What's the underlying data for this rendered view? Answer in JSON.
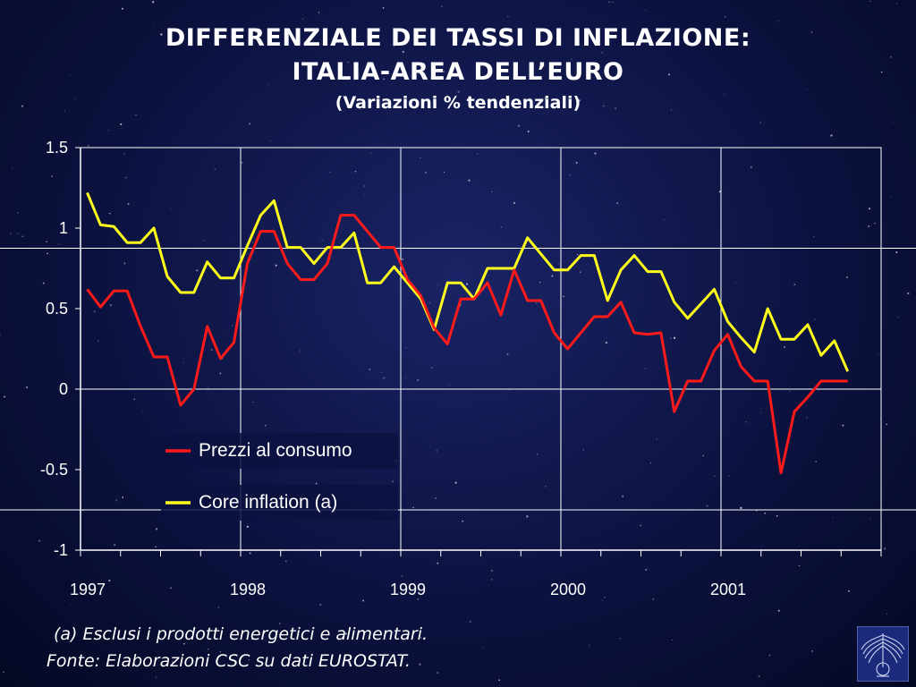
{
  "title_line1": "DIFFERENZIALE DEI TASSI DI INFLAZIONE:",
  "title_line2": "ITALIA-AREA DELL’EURO",
  "subtitle": "(Variazioni % tendenziali)",
  "footnote": "(a) Esclusi i prodotti energetici e alimentari.",
  "source": "Fonte: Elaborazioni CSC su dati EUROSTAT.",
  "logo_icon": "eagle-emblem-icon",
  "chart_data": {
    "type": "line",
    "title": "DIFFERENZIALE DEI TASSI DI INFLAZIONE: ITALIA-AREA DELL’EURO",
    "subtitle": "(Variazioni % tendenziali)",
    "xlabel": "",
    "ylabel": "",
    "ylim": [
      -1,
      1.5
    ],
    "yticks": [
      "-1",
      "-0.5",
      "0",
      "0.5",
      "1",
      "1.5"
    ],
    "xticks": [
      "1997",
      "1998",
      "1999",
      "2000",
      "2001"
    ],
    "x_range_months": [
      0,
      60
    ],
    "grid": "horizontal gridlines at -0.75 and 0.875; vertical gridlines at year boundaries",
    "legend_position": "lower-left inside plot",
    "series": [
      {
        "name": "Prezzi al consumo",
        "color": "#ff1a1a",
        "values": [
          0.62,
          0.51,
          0.61,
          0.61,
          0.39,
          0.2,
          0.2,
          -0.1,
          0.0,
          0.39,
          0.19,
          0.29,
          0.78,
          0.98,
          0.98,
          0.78,
          0.68,
          0.68,
          0.78,
          1.08,
          1.08,
          0.98,
          0.88,
          0.88,
          0.68,
          0.58,
          0.38,
          0.28,
          0.56,
          0.56,
          0.66,
          0.46,
          0.74,
          0.55,
          0.55,
          0.35,
          0.25,
          0.35,
          0.45,
          0.45,
          0.54,
          0.35,
          0.34,
          0.35,
          -0.14,
          0.05,
          0.05,
          0.24,
          0.34,
          0.14,
          0.05,
          0.05,
          -0.52,
          -0.14,
          -0.05,
          0.05,
          0.05,
          0.05
        ]
      },
      {
        "name": "Core inflation (a)",
        "color": "#ffff1a",
        "values": [
          1.22,
          1.02,
          1.01,
          0.91,
          0.91,
          1.0,
          0.7,
          0.6,
          0.6,
          0.79,
          0.69,
          0.69,
          0.89,
          1.08,
          1.17,
          0.88,
          0.88,
          0.78,
          0.88,
          0.88,
          0.97,
          0.66,
          0.66,
          0.76,
          0.66,
          0.56,
          0.37,
          0.66,
          0.66,
          0.56,
          0.75,
          0.75,
          0.75,
          0.94,
          0.84,
          0.74,
          0.74,
          0.83,
          0.83,
          0.55,
          0.74,
          0.83,
          0.73,
          0.73,
          0.54,
          0.44,
          0.53,
          0.62,
          0.42,
          0.32,
          0.23,
          0.5,
          0.31,
          0.31,
          0.4,
          0.21,
          0.3,
          0.11
        ]
      }
    ]
  }
}
